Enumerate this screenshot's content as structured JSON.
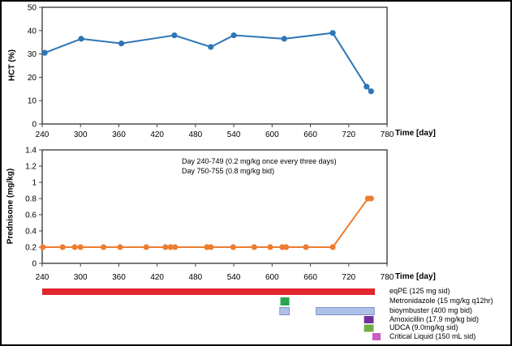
{
  "figure": {
    "border_color": "#000000",
    "background": "#ffffff"
  },
  "chart_data": [
    {
      "type": "line",
      "name": "hct",
      "title": "",
      "xlabel": "Time [day]",
      "ylabel": "HCT (%)",
      "xlim": [
        240,
        780
      ],
      "ylim": [
        0,
        50
      ],
      "xticks": [
        240,
        300,
        360,
        420,
        480,
        540,
        600,
        660,
        720,
        780
      ],
      "yticks": [
        0,
        10,
        20,
        30,
        40,
        50
      ],
      "grid": false,
      "frame": true,
      "series": [
        {
          "name": "hct",
          "color": "#2e75b6",
          "x": [
            244,
            301,
            364,
            447,
            504,
            540,
            619,
            695,
            748,
            755
          ],
          "y": [
            30.5,
            36.5,
            34.5,
            38,
            33,
            38,
            36.5,
            39,
            16,
            14
          ]
        }
      ]
    },
    {
      "type": "line",
      "name": "prednisone",
      "title": "",
      "xlabel": "Time [day]",
      "ylabel": "Prednisone (mg/kg)",
      "xlim": [
        240,
        780
      ],
      "ylim": [
        0,
        1.4
      ],
      "xticks": [
        240,
        300,
        360,
        420,
        480,
        540,
        600,
        660,
        720,
        780
      ],
      "yticks": [
        0,
        0.2,
        0.4,
        0.6,
        0.8,
        1,
        1.2,
        1.4
      ],
      "grid": false,
      "frame": true,
      "annotation": [
        "Day 240-749 (0.2 mg/kg  once every three days)",
        "Day 750-755 (0.8 mg/kg  bid)"
      ],
      "series": [
        {
          "name": "prednisone",
          "color": "#ed7d31",
          "x": [
            241,
            272,
            291,
            300,
            336,
            362,
            403,
            433,
            441,
            448,
            498,
            504,
            539,
            572,
            597,
            616,
            622,
            653,
            695,
            750,
            755
          ],
          "y": [
            0.2,
            0.2,
            0.2,
            0.2,
            0.2,
            0.2,
            0.2,
            0.2,
            0.2,
            0.2,
            0.2,
            0.2,
            0.2,
            0.2,
            0.2,
            0.2,
            0.2,
            0.2,
            0.2,
            0.8,
            0.8
          ]
        }
      ]
    },
    {
      "type": "timeline",
      "name": "medications",
      "xlim": [
        240,
        780
      ],
      "rows": [
        {
          "label": "eqPE (125 mg sid)",
          "color": "#e2262d",
          "border": "",
          "bars": [
            [
              240,
              761
            ]
          ]
        },
        {
          "label": "Metronidazole  (15 mg/kg  q12hr)",
          "color": "#29a651",
          "border": "",
          "bars": [
            [
              613,
              627
            ]
          ]
        },
        {
          "label": "bioymbuster  (400 mg bid)",
          "color": "#aec0e6",
          "border": "#8091c9",
          "bars": [
            [
              612,
              627
            ],
            [
              669,
              760
            ]
          ]
        },
        {
          "label": "Amoxicillin  (17.9 mg/kg  bid)",
          "color": "#7030a0",
          "border": "",
          "bars": [
            [
              744,
              759
            ]
          ]
        },
        {
          "label": "UDCA (9.0mg/kg  sid)",
          "color": "#70ad47",
          "border": "",
          "bars": [
            [
              744,
              759
            ]
          ]
        },
        {
          "label": "Critical Liquid (150 mL sid)",
          "color": "#c95fc0",
          "border": "",
          "bars": [
            [
              757,
              770
            ]
          ]
        }
      ]
    }
  ]
}
